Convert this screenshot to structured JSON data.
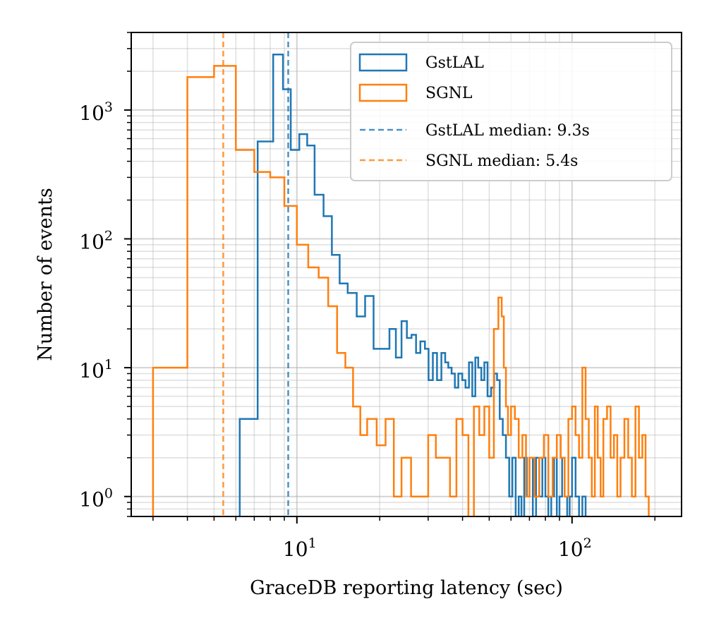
{
  "chart_data": {
    "type": "histogram",
    "xlabel": "GraceDB reporting latency (sec)",
    "ylabel": "Number of events",
    "xscale": "log",
    "yscale": "log",
    "xlim": [
      2.5,
      250
    ],
    "ylim": [
      0.7,
      4000
    ],
    "x_ticks": [
      {
        "value": 10,
        "base": "10",
        "exp": "1"
      },
      {
        "value": 100,
        "base": "10",
        "exp": "2"
      }
    ],
    "y_ticks": [
      {
        "value": 1,
        "base": "10",
        "exp": "0"
      },
      {
        "value": 10,
        "base": "10",
        "exp": "1"
      },
      {
        "value": 100,
        "base": "10",
        "exp": "2"
      },
      {
        "value": 1000,
        "base": "10",
        "exp": "3"
      }
    ],
    "grid": true,
    "legend_position": "top-right",
    "colors": {
      "gstlal": "#1f77b4",
      "sgnl": "#ff7f0e"
    },
    "series": [
      {
        "name": "GstLAL",
        "color": "#1f77b4",
        "edges": [
          6.2,
          7.2,
          8.2,
          8.9,
          9.5,
          10.2,
          10.9,
          11.6,
          12.5,
          13.4,
          14.3,
          15.3,
          16.5,
          17.7,
          19.0,
          20.4,
          21.7,
          22.9,
          24.0,
          25.1,
          26.1,
          27.1,
          28.1,
          29.2,
          30.1,
          31.2,
          32.3,
          33.5,
          34.6,
          35.5,
          36.5,
          37.5,
          38.6,
          39.9,
          41.0,
          42.2,
          43.4,
          44.5,
          45.6,
          46.8,
          48.0,
          49.3,
          50.8,
          52.1,
          53.4,
          54.6,
          56.0,
          57.5,
          59.1,
          60.7,
          62.4,
          64.0,
          65.5,
          67.0,
          68.5,
          70.0,
          72.0,
          74.0,
          76.0,
          78.0,
          80.0,
          82.0,
          84.0,
          86.0,
          88.0,
          90.0,
          92.0,
          94.0,
          96.0,
          98.0,
          100.0,
          103.0,
          106.0,
          109.0,
          112.0
        ],
        "counts": [
          4,
          570,
          2700,
          1450,
          490,
          650,
          530,
          220,
          150,
          75,
          45,
          38,
          25,
          36,
          14,
          14,
          20,
          12,
          23,
          17,
          18,
          13,
          16,
          14,
          8,
          13,
          8,
          13,
          11,
          10,
          9,
          7,
          9,
          8,
          7,
          11,
          6,
          12,
          10,
          8,
          11,
          6,
          7,
          9,
          8,
          4,
          3,
          2,
          1,
          2,
          0.6,
          1,
          0.6,
          2,
          1,
          2,
          0.6,
          2,
          1,
          2,
          1,
          0.6,
          1,
          2,
          0.6,
          1,
          2,
          1,
          0.6,
          1,
          2,
          1,
          0.6,
          1
        ]
      },
      {
        "name": "SGNL",
        "color": "#ff7f0e",
        "edges": [
          3.0,
          4.0,
          5.0,
          6.0,
          7.0,
          8.0,
          9.0,
          10.0,
          11.0,
          12.0,
          13.0,
          14.0,
          15.0,
          16.0,
          17.0,
          18.0,
          19.5,
          21.0,
          22.5,
          24.0,
          26.0,
          28.0,
          30.0,
          32.0,
          34.0,
          36.0,
          38.0,
          40.0,
          42.0,
          44.0,
          46.0,
          48.0,
          50.0,
          52.0,
          54.0,
          55.5,
          56.5,
          57.5,
          58.5,
          60.0,
          62.0,
          64.0,
          66.0,
          68.0,
          70.0,
          73.0,
          76.0,
          79.0,
          82.0,
          85.0,
          88.0,
          91.0,
          94.0,
          97.0,
          100.0,
          103.0,
          106.0,
          109.0,
          112.0,
          115.0,
          118.0,
          121.0,
          124.0,
          127.0,
          130.0,
          134.0,
          138.0,
          142.0,
          146.0,
          150.0,
          155.0,
          160.0,
          165.0,
          170.0,
          175.0,
          180.0,
          185.0,
          190.0,
          195.0
        ],
        "counts": [
          10,
          1800,
          2200,
          490,
          330,
          300,
          180,
          90,
          60,
          50,
          30,
          13,
          10,
          5,
          3,
          4,
          2.5,
          4,
          1,
          2,
          1,
          1,
          3,
          2,
          2,
          1,
          4,
          3,
          0.6,
          5,
          3,
          5,
          2,
          20,
          35,
          25,
          10,
          5,
          3,
          5,
          4,
          2,
          3,
          1,
          2,
          1,
          2,
          3,
          1,
          2,
          3,
          2,
          1,
          4,
          5,
          3,
          2,
          10,
          4,
          2,
          1,
          5,
          2,
          1,
          4,
          5,
          2,
          3,
          1,
          2,
          4,
          2,
          1,
          5,
          2,
          3,
          1,
          0.6
        ]
      },
      {
        "name": "GstLAL median: 9.3s",
        "type": "vline",
        "x": 9.3,
        "color": "#1f77b4"
      },
      {
        "name": "SGNL median: 5.4s",
        "type": "vline",
        "x": 5.4,
        "color": "#ff7f0e"
      }
    ]
  }
}
